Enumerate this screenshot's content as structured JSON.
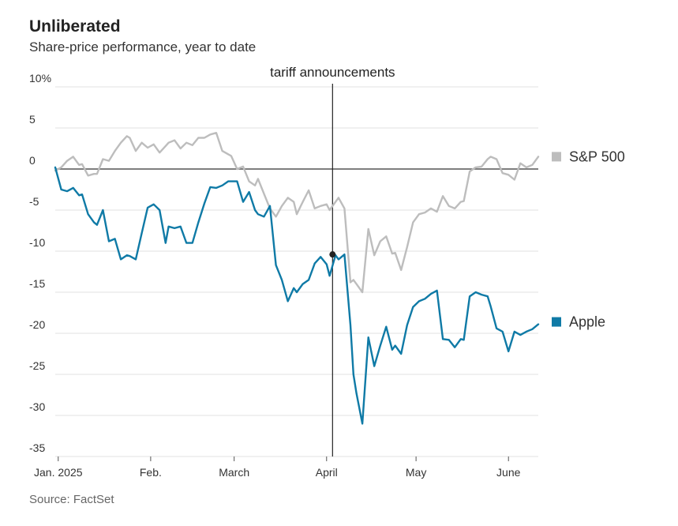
{
  "header": {
    "title": "Unliberated",
    "subtitle": "Share-price performance, year to date"
  },
  "footer": {
    "source": "Source: FactSet"
  },
  "colors": {
    "sp500": "#bdbdbd",
    "apple": "#0f7aa6",
    "grid": "#e2e2e2",
    "zero": "#555555",
    "annotation": "#222222"
  },
  "chart_data": {
    "type": "line",
    "title": "Unliberated",
    "subtitle": "Share-price performance, year to date",
    "xlabel": "",
    "ylabel": "",
    "unit": "% change",
    "ylim": [
      -35,
      10
    ],
    "yticks": [
      {
        "v": 10,
        "label": "10%"
      },
      {
        "v": 5,
        "label": "5"
      },
      {
        "v": 0,
        "label": "0"
      },
      {
        "v": -5,
        "label": "-5"
      },
      {
        "v": -10,
        "label": "-10"
      },
      {
        "v": -15,
        "label": "-15"
      },
      {
        "v": -20,
        "label": "-20"
      },
      {
        "v": -25,
        "label": "-25"
      },
      {
        "v": -30,
        "label": "-30"
      },
      {
        "v": -35,
        "label": "-35"
      }
    ],
    "xlim_day": [
      0,
      162
    ],
    "xticks": [
      {
        "day": 1,
        "label": "Jan. 2025"
      },
      {
        "day": 32,
        "label": "Feb."
      },
      {
        "day": 60,
        "label": "March"
      },
      {
        "day": 91,
        "label": "April"
      },
      {
        "day": 121,
        "label": "May"
      },
      {
        "day": 152,
        "label": "June"
      }
    ],
    "annotation": {
      "label": "tariff announcements",
      "day": 93,
      "value": -10.4
    },
    "series": [
      {
        "name": "S&P 500",
        "legend_label": "S&P 500",
        "days": [
          0,
          2,
          4,
          6,
          8,
          9,
          11,
          13,
          14,
          16,
          18,
          20,
          22,
          24,
          25,
          27,
          29,
          31,
          33,
          35,
          37,
          38,
          40,
          42,
          44,
          46,
          48,
          50,
          52,
          54,
          56,
          58,
          59,
          61,
          63,
          65,
          67,
          68,
          70,
          72,
          74,
          76,
          78,
          80,
          81,
          83,
          85,
          87,
          89,
          91,
          92,
          94,
          95,
          97,
          99,
          100,
          101,
          103,
          105,
          107,
          109,
          111,
          113,
          114,
          116,
          118,
          120,
          122,
          124,
          126,
          128,
          130,
          132,
          134,
          136,
          137,
          139,
          141,
          143,
          145,
          146,
          148,
          150,
          152,
          154,
          156,
          158,
          160,
          162
        ],
        "values": [
          -0.2,
          0.2,
          1.0,
          1.5,
          0.5,
          0.6,
          -0.8,
          -0.6,
          -0.6,
          1.2,
          1.0,
          2.2,
          3.2,
          4.0,
          3.8,
          2.2,
          3.2,
          2.6,
          3.0,
          2.0,
          2.8,
          3.2,
          3.5,
          2.5,
          3.2,
          2.9,
          3.8,
          3.8,
          4.2,
          4.4,
          2.2,
          1.8,
          1.6,
          0.0,
          0.3,
          -1.5,
          -2.0,
          -1.2,
          -3.0,
          -4.8,
          -5.8,
          -4.5,
          -3.5,
          -4.0,
          -5.5,
          -4.0,
          -2.6,
          -4.8,
          -4.5,
          -4.3,
          -5.0,
          -4.0,
          -3.5,
          -4.8,
          -13.8,
          -13.5,
          -14.0,
          -15.0,
          -7.3,
          -10.5,
          -8.8,
          -8.2,
          -10.3,
          -10.2,
          -12.3,
          -9.5,
          -6.5,
          -5.5,
          -5.3,
          -4.8,
          -5.2,
          -3.3,
          -4.5,
          -4.8,
          -4.0,
          -3.9,
          -0.3,
          0.2,
          0.3,
          1.2,
          1.5,
          1.2,
          -0.5,
          -0.7,
          -1.3,
          0.7,
          0.2,
          0.5,
          1.5
        ]
      },
      {
        "name": "Apple",
        "legend_label": "Apple",
        "days": [
          0,
          2,
          4,
          6,
          8,
          9,
          11,
          13,
          14,
          16,
          18,
          20,
          22,
          24,
          25,
          27,
          29,
          31,
          33,
          35,
          37,
          38,
          40,
          42,
          44,
          46,
          48,
          50,
          52,
          54,
          56,
          58,
          59,
          61,
          63,
          65,
          67,
          68,
          70,
          72,
          74,
          76,
          78,
          80,
          81,
          83,
          85,
          87,
          89,
          91,
          92,
          94,
          95,
          97,
          99,
          100,
          101,
          103,
          105,
          107,
          109,
          111,
          113,
          114,
          116,
          118,
          120,
          122,
          124,
          126,
          128,
          130,
          132,
          134,
          136,
          137,
          139,
          141,
          143,
          145,
          146,
          148,
          150,
          152,
          154,
          156,
          158,
          160,
          162
        ],
        "values": [
          0.2,
          -2.5,
          -2.7,
          -2.3,
          -3.2,
          -3.1,
          -5.5,
          -6.5,
          -6.8,
          -5.0,
          -8.8,
          -8.5,
          -11.0,
          -10.5,
          -10.6,
          -11.0,
          -7.8,
          -4.7,
          -4.3,
          -5.0,
          -9.0,
          -7.0,
          -7.2,
          -7.0,
          -9.0,
          -9.0,
          -6.5,
          -4.2,
          -2.2,
          -2.3,
          -2.0,
          -1.5,
          -1.5,
          -1.5,
          -4.0,
          -2.8,
          -5.0,
          -5.5,
          -5.8,
          -4.5,
          -11.7,
          -13.5,
          -16.1,
          -14.5,
          -15.0,
          -14.0,
          -13.5,
          -11.5,
          -10.7,
          -11.6,
          -13.0,
          -10.5,
          -11.0,
          -10.4,
          -19.0,
          -25.0,
          -27.3,
          -31.0,
          -20.5,
          -24.0,
          -21.5,
          -19.2,
          -22.0,
          -21.5,
          -22.5,
          -19.0,
          -16.8,
          -16.1,
          -15.8,
          -15.2,
          -14.8,
          -20.7,
          -20.8,
          -21.7,
          -20.7,
          -20.8,
          -15.5,
          -15.0,
          -15.3,
          -15.5,
          -16.7,
          -19.4,
          -19.8,
          -22.2,
          -19.8,
          -20.2,
          -19.8,
          -19.5,
          -18.9
        ]
      }
    ]
  }
}
